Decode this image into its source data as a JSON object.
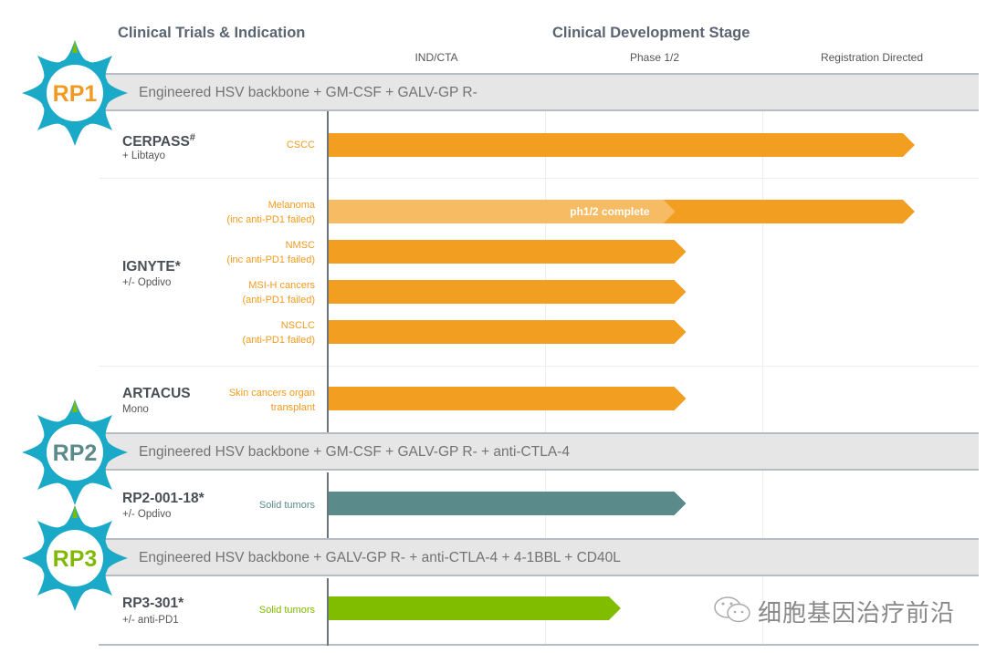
{
  "chart_data": {
    "type": "gantt-pipeline",
    "left_header": "Clinical Trials & Indication",
    "right_header": "Clinical Development Stage",
    "stages": [
      "IND/CTA",
      "Phase 1/2",
      "Registration Directed"
    ],
    "stage_scale_note": "bar end measured in stage units: 0 = start of IND/CTA, 3 = end of Registration Directed",
    "programs": [
      {
        "id": "RP1",
        "badge_label": "RP1",
        "badge_color": "#f29a1f",
        "description": "Engineered HSV backbone + GM-CSF + GALV-GP R-",
        "bar_color": "#f29f21",
        "trials": [
          {
            "name": "CERPASS",
            "mark": "#",
            "combo": "+ Libtayo",
            "indications": [
              {
                "label": [
                  "CSCC"
                ],
                "end_stage": 2.7
              }
            ]
          },
          {
            "name": "IGNYTE*",
            "mark": "",
            "combo": "+/- Opdivo",
            "indications": [
              {
                "label": [
                  "Melanoma",
                  "(inc anti-PD1 failed)"
                ],
                "end_stage": 2.7,
                "completed_to_stage": 1.6,
                "completed_label": "ph1/2 complete"
              },
              {
                "label": [
                  "NMSC",
                  "(inc anti-PD1 failed)"
                ],
                "end_stage": 1.65
              },
              {
                "label": [
                  "MSI-H cancers",
                  "(anti-PD1 failed)"
                ],
                "end_stage": 1.65
              },
              {
                "label": [
                  "NSCLC",
                  "(anti-PD1 failed)"
                ],
                "end_stage": 1.65
              }
            ]
          },
          {
            "name": "ARTACUS",
            "mark": "",
            "combo": "Mono",
            "indications": [
              {
                "label": [
                  "Skin cancers organ",
                  "transplant"
                ],
                "end_stage": 1.65
              }
            ]
          }
        ]
      },
      {
        "id": "RP2",
        "badge_label": "RP2",
        "badge_color": "#5a8b8a",
        "description": "Engineered HSV backbone + GM-CSF + GALV-GP R- + anti-CTLA-4",
        "bar_color": "#5a8b8a",
        "trials": [
          {
            "name": "RP2-001-18*",
            "mark": "",
            "combo": "+/- Opdivo",
            "indications": [
              {
                "label": [
                  "Solid tumors"
                ],
                "end_stage": 1.65
              }
            ]
          }
        ]
      },
      {
        "id": "RP3",
        "badge_label": "RP3",
        "badge_color": "#7fba00",
        "description": "Engineered HSV backbone + GALV-GP R- + anti-CTLA-4 + 4-1BBL + CD40L",
        "bar_color": "#80bc00",
        "trials": [
          {
            "name": "RP3-301*",
            "mark": "",
            "combo": "+/- anti-PD1",
            "indications": [
              {
                "label": [
                  "Solid tumors"
                ],
                "end_stage": 1.35
              }
            ]
          }
        ]
      }
    ]
  },
  "watermark": "细胞基因治疗前沿",
  "colors": {
    "badge_ring": "#1aa9c6",
    "badge_spike": "#7fba00",
    "band_bg": "#e6e6e6",
    "completed_bar": "#f6bb63"
  }
}
